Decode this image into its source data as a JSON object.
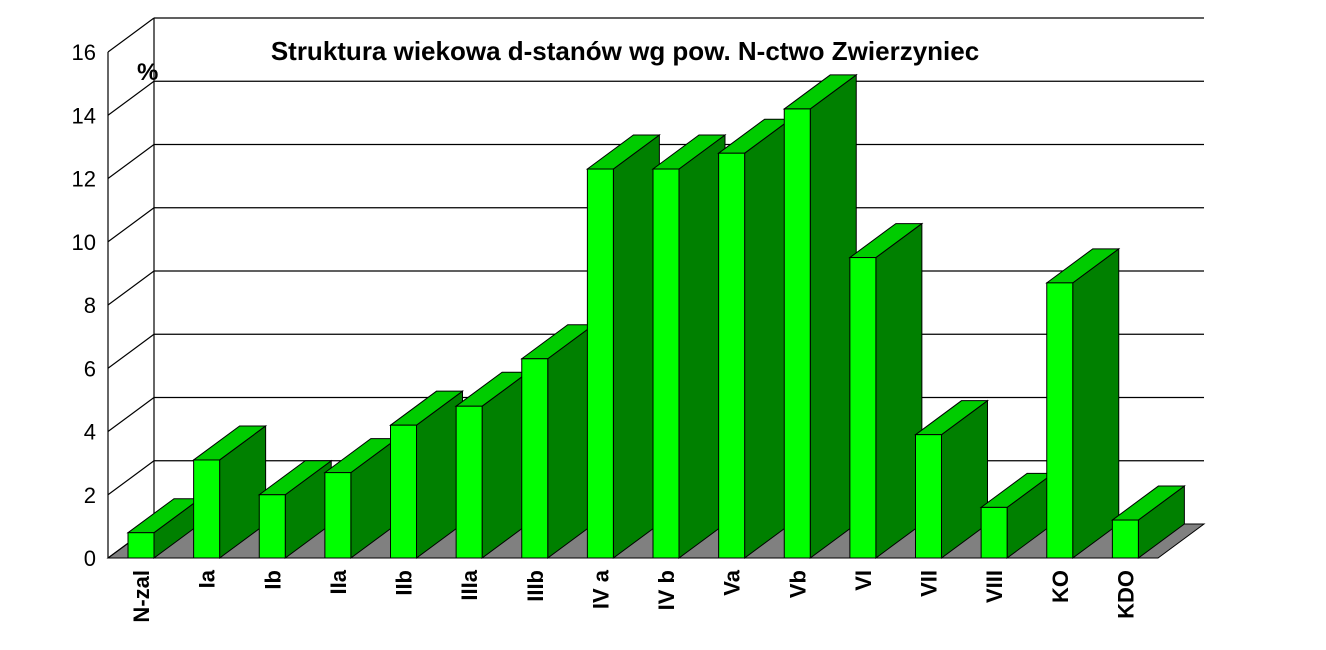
{
  "chart_data": {
    "type": "bar",
    "title": "Struktura wiekowa d-stanów wg pow. N-ctwo Zwierzyniec",
    "ylabel": "%",
    "xlabel": "",
    "ylim": [
      0,
      16
    ],
    "yticks": [
      0,
      2,
      4,
      6,
      8,
      10,
      12,
      14,
      16
    ],
    "grid": true,
    "three_d": true,
    "categories": [
      "N-zal",
      "Ia",
      "Ib",
      "IIa",
      "IIb",
      "IIIa",
      "IIIb",
      "IV a",
      "IV b",
      "Va",
      "Vb",
      "VI",
      "VII",
      "VIII",
      "KO",
      "KDO"
    ],
    "values": [
      0.8,
      3.1,
      2.0,
      2.7,
      4.2,
      4.8,
      6.3,
      12.3,
      12.3,
      12.8,
      14.2,
      9.5,
      3.9,
      1.6,
      8.7,
      1.2
    ],
    "colors": {
      "bar_front": "#00ff00",
      "bar_side": "#008000",
      "bar_top": "#00cc00",
      "floor": "#808080",
      "grid": "#000000"
    }
  }
}
